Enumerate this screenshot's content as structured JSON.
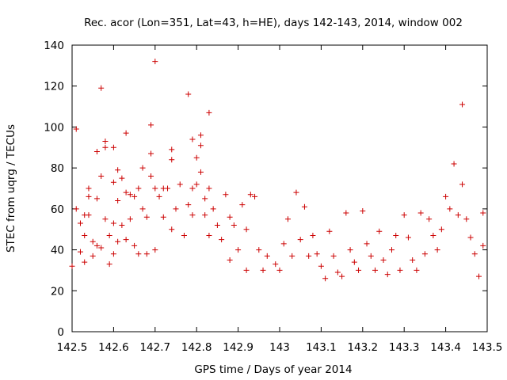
{
  "chart_data": {
    "type": "scatter",
    "title": "Rec. acor (Lon=351, Lat=43, h=HE), days 142-143, 2014, window 002",
    "xlabel": "GPS time / Days of year 2014",
    "ylabel": "STEC from uqrg / TECUs",
    "xlim": [
      142.5,
      143.5
    ],
    "ylim": [
      0,
      140
    ],
    "xticks": [
      "142.5",
      "142.6",
      "142.7",
      "142.8",
      "142.9",
      "143",
      "143.1",
      "143.2",
      "143.3",
      "143.4",
      "143.5"
    ],
    "yticks": [
      "0",
      "20",
      "40",
      "60",
      "80",
      "100",
      "120",
      "140"
    ],
    "grid": false,
    "marker": "+",
    "color": "#cc0000",
    "series": [
      {
        "points": [
          [
            142.5,
            32
          ],
          [
            142.51,
            60
          ],
          [
            142.51,
            99
          ],
          [
            142.52,
            53
          ],
          [
            142.52,
            39
          ],
          [
            142.53,
            57
          ],
          [
            142.53,
            47
          ],
          [
            142.53,
            34
          ],
          [
            142.54,
            66
          ],
          [
            142.54,
            70
          ],
          [
            142.54,
            57
          ],
          [
            142.55,
            44
          ],
          [
            142.55,
            37
          ],
          [
            142.56,
            88
          ],
          [
            142.56,
            65
          ],
          [
            142.56,
            42
          ],
          [
            142.57,
            119
          ],
          [
            142.57,
            76
          ],
          [
            142.57,
            41
          ],
          [
            142.58,
            90
          ],
          [
            142.58,
            93
          ],
          [
            142.58,
            55
          ],
          [
            142.59,
            47
          ],
          [
            142.59,
            33
          ],
          [
            142.6,
            90
          ],
          [
            142.6,
            73
          ],
          [
            142.6,
            53
          ],
          [
            142.6,
            38
          ],
          [
            142.61,
            79
          ],
          [
            142.61,
            64
          ],
          [
            142.61,
            44
          ],
          [
            142.62,
            75
          ],
          [
            142.62,
            52
          ],
          [
            142.63,
            97
          ],
          [
            142.63,
            68
          ],
          [
            142.63,
            45
          ],
          [
            142.64,
            67
          ],
          [
            142.64,
            55
          ],
          [
            142.65,
            66
          ],
          [
            142.65,
            42
          ],
          [
            142.66,
            70
          ],
          [
            142.66,
            38
          ],
          [
            142.67,
            80
          ],
          [
            142.67,
            60
          ],
          [
            142.68,
            56
          ],
          [
            142.68,
            38
          ],
          [
            142.69,
            101
          ],
          [
            142.69,
            87
          ],
          [
            142.69,
            76
          ],
          [
            142.7,
            132
          ],
          [
            142.7,
            70
          ],
          [
            142.7,
            40
          ],
          [
            142.71,
            66
          ],
          [
            142.72,
            70
          ],
          [
            142.72,
            56
          ],
          [
            142.73,
            70
          ],
          [
            142.74,
            89
          ],
          [
            142.74,
            84
          ],
          [
            142.74,
            50
          ],
          [
            142.75,
            60
          ],
          [
            142.76,
            72
          ],
          [
            142.77,
            47
          ],
          [
            142.78,
            116
          ],
          [
            142.78,
            62
          ],
          [
            142.79,
            94
          ],
          [
            142.79,
            70
          ],
          [
            142.79,
            57
          ],
          [
            142.8,
            85
          ],
          [
            142.8,
            72
          ],
          [
            142.81,
            96
          ],
          [
            142.81,
            91
          ],
          [
            142.81,
            78
          ],
          [
            142.82,
            65
          ],
          [
            142.82,
            57
          ],
          [
            142.83,
            107
          ],
          [
            142.83,
            70
          ],
          [
            142.83,
            47
          ],
          [
            142.84,
            60
          ],
          [
            142.85,
            52
          ],
          [
            142.86,
            45
          ],
          [
            142.87,
            67
          ],
          [
            142.88,
            56
          ],
          [
            142.88,
            35
          ],
          [
            142.89,
            52
          ],
          [
            142.9,
            40
          ],
          [
            142.91,
            62
          ],
          [
            142.92,
            50
          ],
          [
            142.92,
            30
          ],
          [
            142.93,
            67
          ],
          [
            142.94,
            66
          ],
          [
            142.95,
            40
          ],
          [
            142.96,
            30
          ],
          [
            142.97,
            37
          ],
          [
            142.99,
            33
          ],
          [
            143.0,
            30
          ],
          [
            143.01,
            43
          ],
          [
            143.02,
            55
          ],
          [
            143.03,
            37
          ],
          [
            143.04,
            68
          ],
          [
            143.05,
            45
          ],
          [
            143.06,
            61
          ],
          [
            143.07,
            37
          ],
          [
            143.08,
            47
          ],
          [
            143.09,
            38
          ],
          [
            143.1,
            32
          ],
          [
            143.11,
            26
          ],
          [
            143.12,
            49
          ],
          [
            143.13,
            37
          ],
          [
            143.14,
            29
          ],
          [
            143.15,
            27
          ],
          [
            143.16,
            58
          ],
          [
            143.17,
            40
          ],
          [
            143.18,
            34
          ],
          [
            143.19,
            30
          ],
          [
            143.2,
            59
          ],
          [
            143.21,
            43
          ],
          [
            143.22,
            37
          ],
          [
            143.23,
            30
          ],
          [
            143.24,
            49
          ],
          [
            143.25,
            35
          ],
          [
            143.26,
            28
          ],
          [
            143.27,
            40
          ],
          [
            143.28,
            47
          ],
          [
            143.29,
            30
          ],
          [
            143.3,
            57
          ],
          [
            143.31,
            46
          ],
          [
            143.32,
            35
          ],
          [
            143.33,
            30
          ],
          [
            143.34,
            58
          ],
          [
            143.35,
            38
          ],
          [
            143.36,
            55
          ],
          [
            143.37,
            47
          ],
          [
            143.38,
            40
          ],
          [
            143.39,
            50
          ],
          [
            143.4,
            66
          ],
          [
            143.41,
            60
          ],
          [
            143.42,
            82
          ],
          [
            143.43,
            57
          ],
          [
            143.44,
            111
          ],
          [
            143.44,
            72
          ],
          [
            143.45,
            55
          ],
          [
            143.46,
            46
          ],
          [
            143.47,
            38
          ],
          [
            143.48,
            27
          ],
          [
            143.49,
            58
          ],
          [
            143.49,
            42
          ]
        ]
      }
    ]
  }
}
